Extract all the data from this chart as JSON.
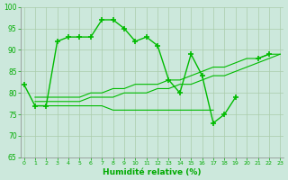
{
  "series": [
    {
      "x": [
        0,
        1,
        2,
        3,
        4,
        5,
        6,
        7,
        8,
        9,
        10,
        11,
        12,
        13,
        14,
        15,
        16,
        17,
        18,
        19,
        20,
        21,
        22,
        23
      ],
      "y": [
        82,
        77,
        77,
        92,
        93,
        93,
        93,
        97,
        97,
        95,
        92,
        93,
        91,
        83,
        80,
        89,
        84,
        73,
        75,
        79,
        null,
        88,
        89,
        null
      ],
      "color": "#00bb00",
      "linewidth": 1.0,
      "marker": "+",
      "markersize": 4,
      "markeredgewidth": 1.2,
      "linestyle": "-"
    },
    {
      "x": [
        1,
        2,
        3,
        4,
        5,
        6,
        7,
        8,
        9,
        10,
        11,
        12,
        13,
        14,
        15,
        16,
        17
      ],
      "y": [
        77,
        77,
        77,
        77,
        77,
        77,
        77,
        76,
        76,
        76,
        76,
        76,
        76,
        76,
        76,
        76,
        76
      ],
      "color": "#00bb00",
      "linewidth": 0.8,
      "marker": null,
      "markersize": 0,
      "linestyle": "-"
    },
    {
      "x": [
        1,
        2,
        3,
        4,
        5,
        6,
        7,
        8,
        9,
        10,
        11,
        12,
        13,
        14,
        15,
        16,
        17,
        18,
        19,
        20,
        21,
        22,
        23
      ],
      "y": [
        78,
        78,
        78,
        78,
        78,
        79,
        79,
        79,
        80,
        80,
        80,
        81,
        81,
        82,
        82,
        83,
        84,
        84,
        85,
        86,
        87,
        88,
        89
      ],
      "color": "#00bb00",
      "linewidth": 0.8,
      "marker": null,
      "markersize": 0,
      "linestyle": "-"
    },
    {
      "x": [
        1,
        2,
        3,
        4,
        5,
        6,
        7,
        8,
        9,
        10,
        11,
        12,
        13,
        14,
        15,
        16,
        17,
        18,
        19,
        20,
        21,
        22,
        23
      ],
      "y": [
        79,
        79,
        79,
        79,
        79,
        80,
        80,
        81,
        81,
        82,
        82,
        82,
        83,
        83,
        84,
        85,
        86,
        86,
        87,
        88,
        88,
        89,
        89
      ],
      "color": "#00bb00",
      "linewidth": 0.8,
      "marker": null,
      "markersize": 0,
      "linestyle": "-"
    }
  ],
  "xlabel": "Humidité relative (%)",
  "xlim": [
    -0.3,
    23.3
  ],
  "ylim": [
    65,
    100
  ],
  "yticks": [
    65,
    70,
    75,
    80,
    85,
    90,
    95,
    100
  ],
  "xticks": [
    0,
    1,
    2,
    3,
    4,
    5,
    6,
    7,
    8,
    9,
    10,
    11,
    12,
    13,
    14,
    15,
    16,
    17,
    18,
    19,
    20,
    21,
    22,
    23
  ],
  "grid_color": "#aaccaa",
  "bg_color": "#cce8dc",
  "tick_color": "#00aa00",
  "xlabel_color": "#00aa00",
  "axis_color": "#888888"
}
